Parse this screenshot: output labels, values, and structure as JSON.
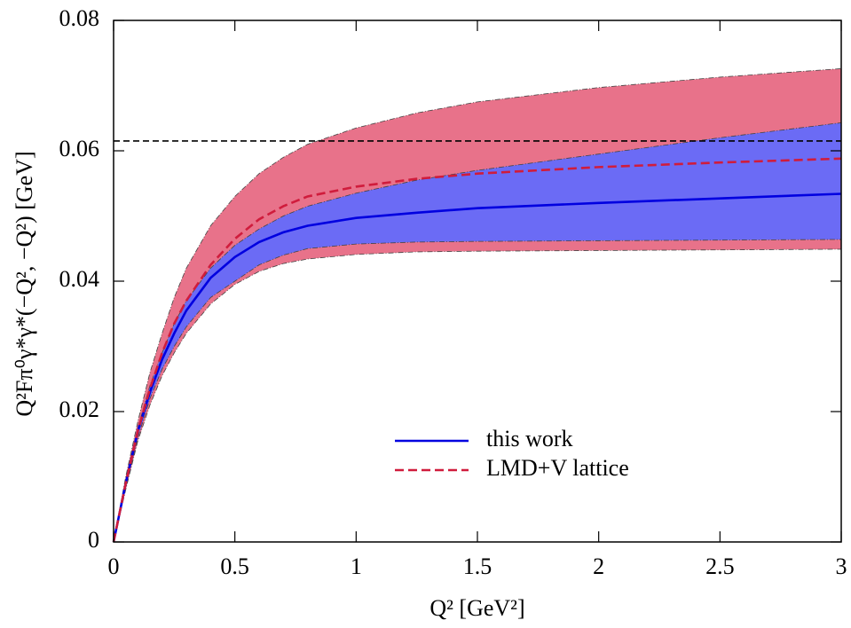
{
  "chart_data": {
    "type": "line",
    "x_label": "Q² [GeV²]",
    "y_label": "Q²Fπ⁰γ*γ*(−Q², −Q²) [GeV]",
    "x": [
      0,
      0.05,
      0.1,
      0.15,
      0.2,
      0.25,
      0.3,
      0.4,
      0.5,
      0.6,
      0.7,
      0.8,
      1,
      1.25,
      1.5,
      2,
      2.5,
      3
    ],
    "bands": [
      {
        "color": "#e8728a",
        "upper": [
          0,
          0.01,
          0.0185,
          0.026,
          0.032,
          0.0375,
          0.042,
          0.0485,
          0.053,
          0.0565,
          0.059,
          0.061,
          0.0635,
          0.0658,
          0.0675,
          0.0697,
          0.0713,
          0.0726
        ],
        "lower": [
          0,
          0.008,
          0.0155,
          0.021,
          0.0255,
          0.029,
          0.032,
          0.0365,
          0.0395,
          0.0415,
          0.0427,
          0.0434,
          0.0441,
          0.0445,
          0.0446,
          0.0447,
          0.0448,
          0.0449
        ]
      },
      {
        "color": "#6b6bf5",
        "upper": [
          0,
          0.009,
          0.0175,
          0.024,
          0.029,
          0.0335,
          0.037,
          0.042,
          0.0455,
          0.048,
          0.05,
          0.0515,
          0.0535,
          0.0555,
          0.057,
          0.0595,
          0.062,
          0.0643
        ],
        "lower": [
          0,
          0.0085,
          0.016,
          0.022,
          0.0265,
          0.03,
          0.033,
          0.0375,
          0.04,
          0.0425,
          0.044,
          0.045,
          0.0457,
          0.046,
          0.0461,
          0.0462,
          0.0463,
          0.0464
        ]
      }
    ],
    "series": [
      {
        "name": "this work",
        "color": "#0000e0",
        "dash": false,
        "values": [
          0,
          0.009,
          0.017,
          0.023,
          0.028,
          0.032,
          0.0355,
          0.0405,
          0.0437,
          0.046,
          0.0475,
          0.0485,
          0.0497,
          0.0505,
          0.0512,
          0.052,
          0.0527,
          0.0534
        ]
      },
      {
        "name": "LMD+V lattice",
        "color": "#d01c3c",
        "dash": true,
        "values": [
          0,
          0.009,
          0.017,
          0.0235,
          0.029,
          0.0335,
          0.037,
          0.0425,
          0.0465,
          0.0495,
          0.0515,
          0.053,
          0.0545,
          0.0557,
          0.0565,
          0.0575,
          0.0582,
          0.0588
        ]
      }
    ],
    "hline": {
      "value": 0.0615,
      "color": "#000000"
    },
    "xlim": [
      0,
      3
    ],
    "ylim": [
      0,
      0.08
    ],
    "xticks": [
      0,
      0.5,
      1,
      1.5,
      2,
      2.5,
      3
    ],
    "yticks": [
      0,
      0.02,
      0.04,
      0.06,
      0.08
    ],
    "legend": "lower right"
  }
}
